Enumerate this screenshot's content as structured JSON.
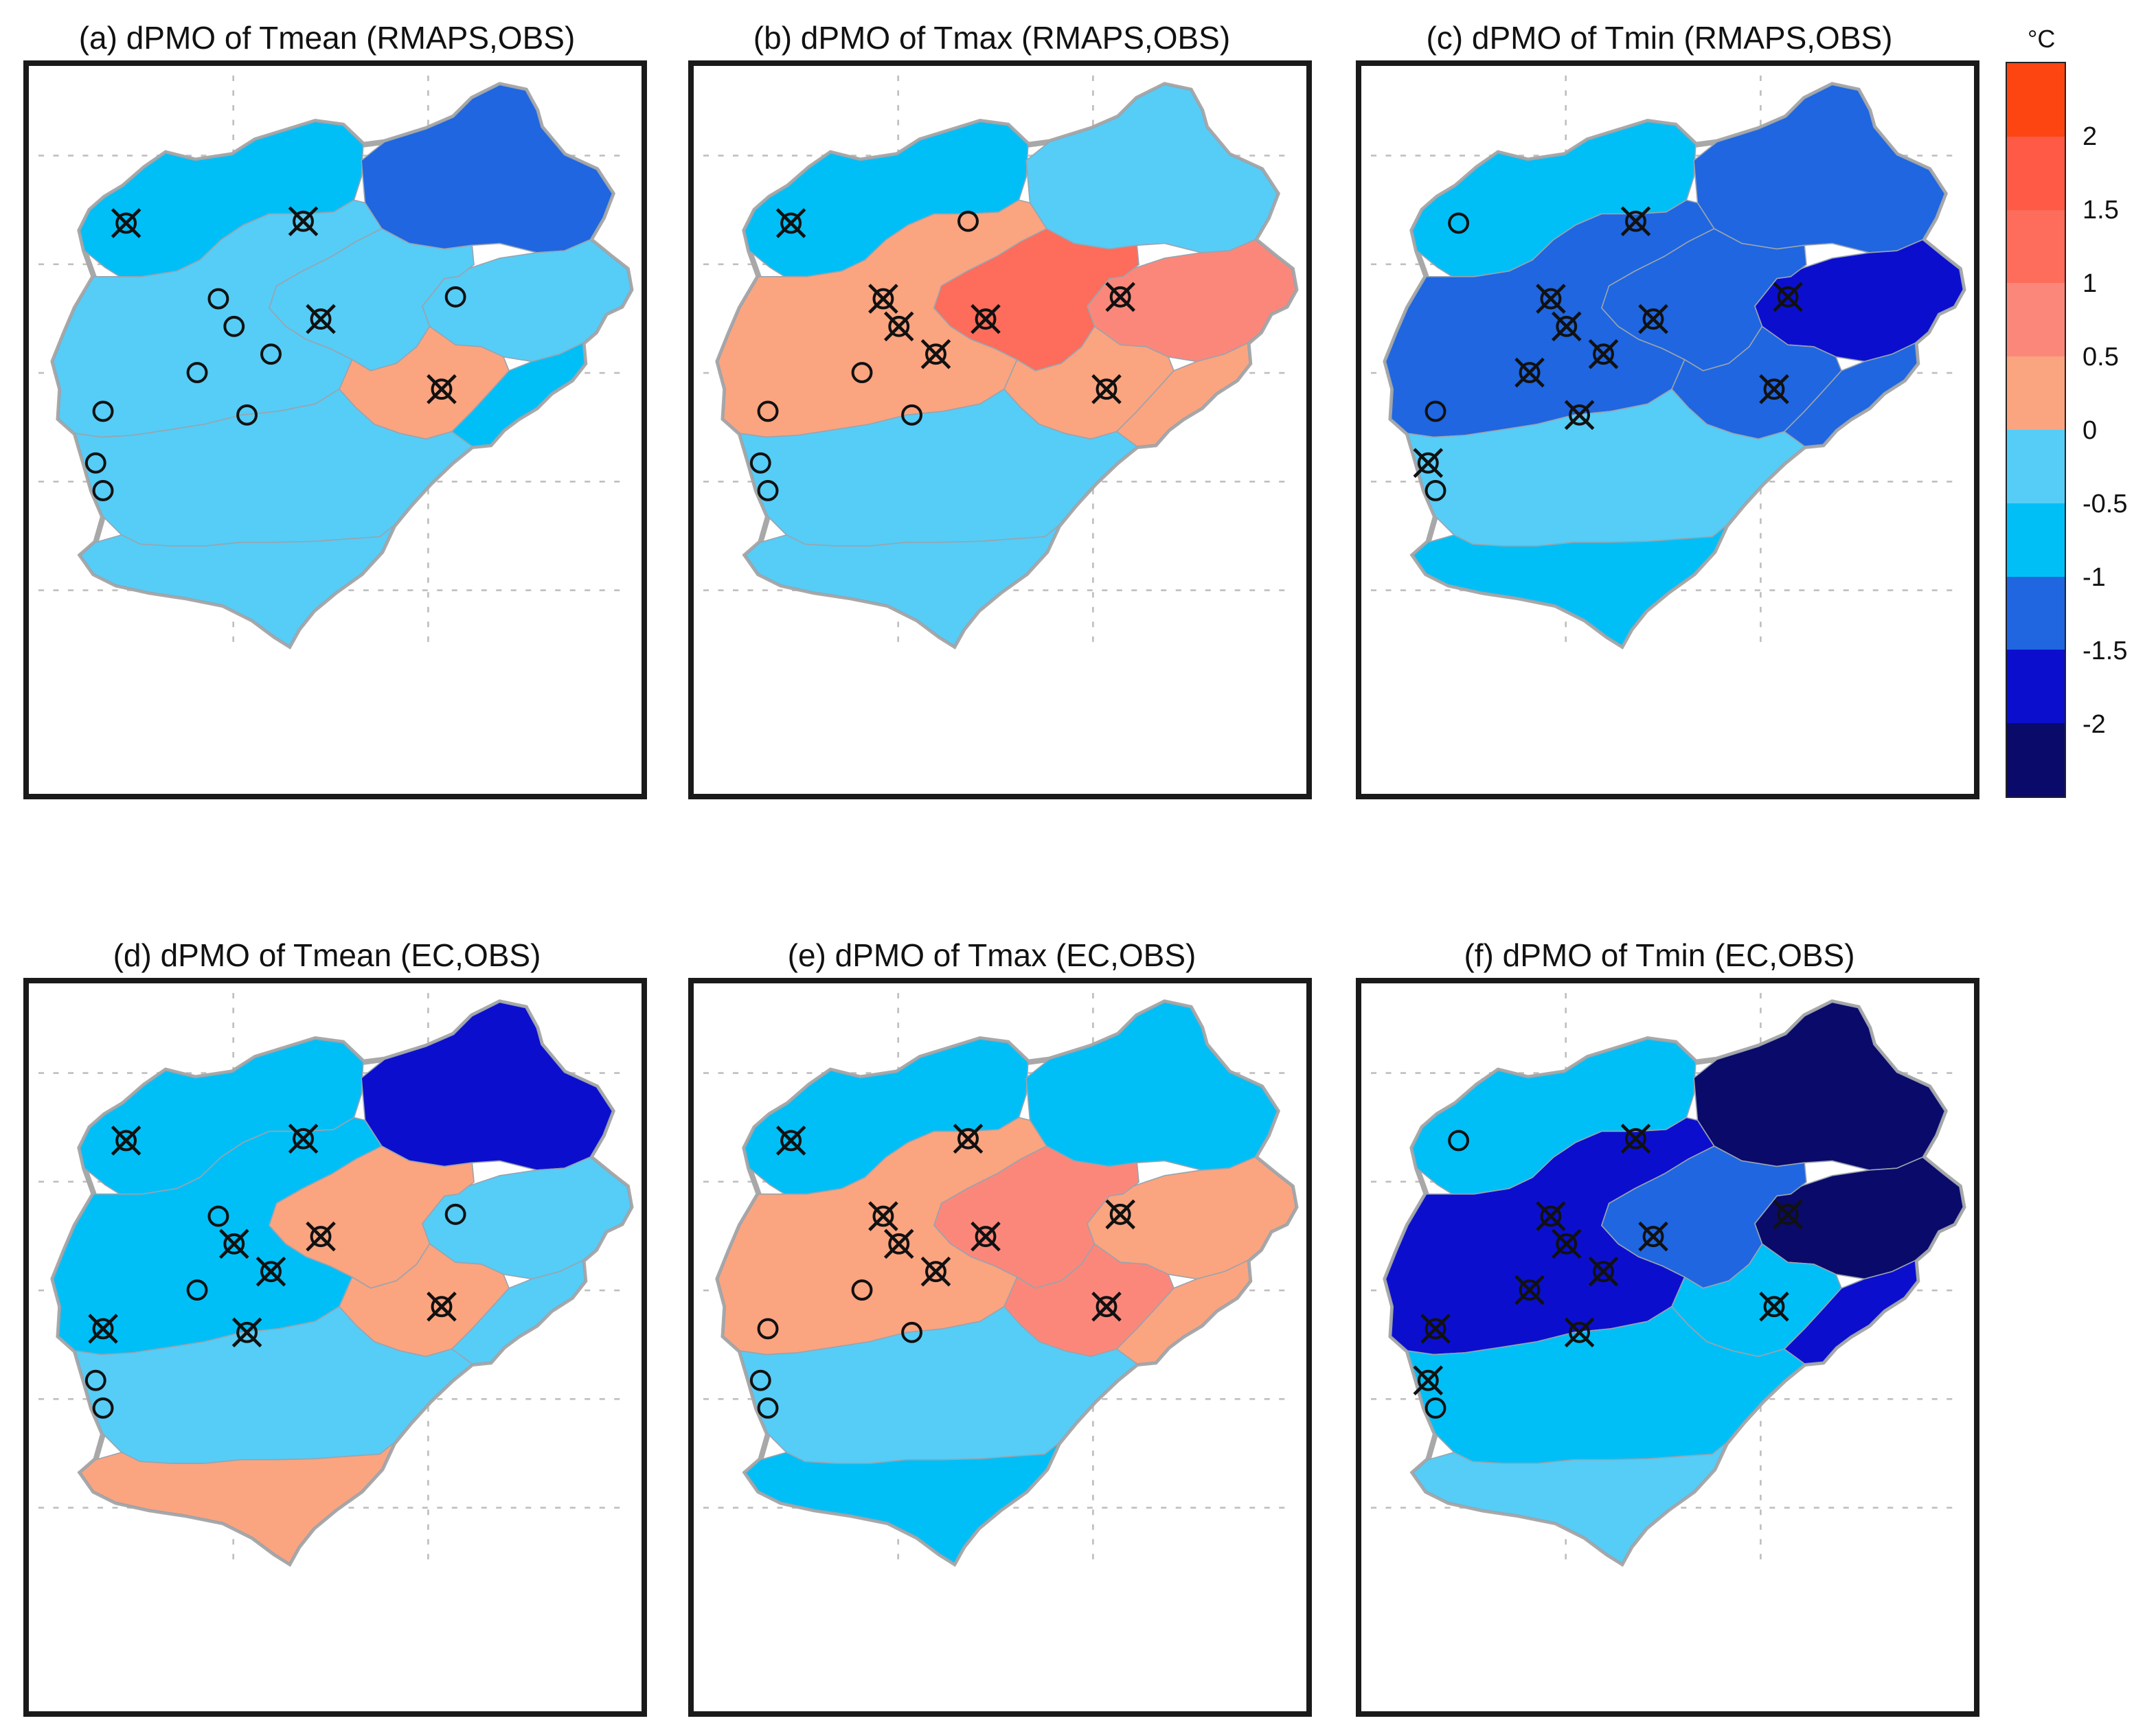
{
  "colors": {
    "-2.5": "#0a0a6b",
    "-2": "#0b0fcd",
    "-1.5": "#1f66e0",
    "-1": "#00bff7",
    "-0.5": "#55cdf7",
    "0": "#fba480",
    "0.5": "#fb877b",
    "1": "#fe6c5b",
    "1.5": "#fe5a45",
    "2": "#fd4511"
  },
  "colorbar": {
    "unit": "°C",
    "bins": [
      -2.5,
      -2,
      -1.5,
      -1,
      -0.5,
      0,
      0.5,
      1,
      1.5,
      2
    ],
    "ticks": [
      "2",
      "1.5",
      "1",
      "0.5",
      "0",
      "-0.5",
      "-1",
      "-1.5",
      "-2"
    ]
  },
  "panels": [
    {
      "id": "a",
      "title": "(a) dPMO of Tmean (RMAPS,OBS)",
      "regions": {
        "NW": -1,
        "NE": -1.5,
        "E": -0.5,
        "C": -0.5,
        "CS": 0,
        "CE": -1,
        "W": -0.5,
        "SW": -0.5,
        "S": -0.5
      },
      "stations": [
        {
          "name": "s1",
          "marker": "cross"
        },
        {
          "name": "s2",
          "marker": "cross"
        },
        {
          "name": "s3",
          "marker": "circle"
        },
        {
          "name": "s4",
          "marker": "circle"
        },
        {
          "name": "s5",
          "marker": "circle"
        },
        {
          "name": "s6",
          "marker": "cross"
        },
        {
          "name": "s7",
          "marker": "circle"
        },
        {
          "name": "s8",
          "marker": "circle"
        },
        {
          "name": "s9",
          "marker": "cross"
        },
        {
          "name": "s10",
          "marker": "circle"
        },
        {
          "name": "s11",
          "marker": "circle"
        },
        {
          "name": "s12",
          "marker": "circle"
        },
        {
          "name": "s13",
          "marker": "circle"
        }
      ]
    },
    {
      "id": "b",
      "title": "(b) dPMO of Tmax (RMAPS,OBS)",
      "regions": {
        "NW": -1,
        "NE": -0.5,
        "E": 0.5,
        "C": 1,
        "CS": 0,
        "CE": 0,
        "W": 0,
        "SW": -0.5,
        "S": -0.5
      },
      "stations": [
        {
          "name": "s1",
          "marker": "cross"
        },
        {
          "name": "s2",
          "marker": "circle"
        },
        {
          "name": "s3",
          "marker": "cross"
        },
        {
          "name": "s4",
          "marker": "cross"
        },
        {
          "name": "s5",
          "marker": "cross"
        },
        {
          "name": "s6",
          "marker": "cross"
        },
        {
          "name": "s7",
          "marker": "cross"
        },
        {
          "name": "s8",
          "marker": "circle"
        },
        {
          "name": "s9",
          "marker": "cross"
        },
        {
          "name": "s10",
          "marker": "circle"
        },
        {
          "name": "s11",
          "marker": "circle"
        },
        {
          "name": "s12",
          "marker": "circle"
        },
        {
          "name": "s13",
          "marker": "circle"
        }
      ]
    },
    {
      "id": "c",
      "title": "(c) dPMO of Tmin (RMAPS,OBS)",
      "regions": {
        "NW": -1,
        "NE": -1.5,
        "E": -2,
        "C": -1.5,
        "CS": -1.5,
        "CE": -1.5,
        "W": -1.5,
        "SW": -0.5,
        "S": -1
      },
      "stations": [
        {
          "name": "s1",
          "marker": "circle"
        },
        {
          "name": "s2",
          "marker": "cross"
        },
        {
          "name": "s3",
          "marker": "cross"
        },
        {
          "name": "s4",
          "marker": "cross"
        },
        {
          "name": "s5",
          "marker": "cross"
        },
        {
          "name": "s6",
          "marker": "cross"
        },
        {
          "name": "s7",
          "marker": "cross"
        },
        {
          "name": "s8",
          "marker": "cross"
        },
        {
          "name": "s9",
          "marker": "cross"
        },
        {
          "name": "s10",
          "marker": "circle"
        },
        {
          "name": "s11",
          "marker": "cross"
        },
        {
          "name": "s12",
          "marker": "cross"
        },
        {
          "name": "s13",
          "marker": "circle"
        }
      ]
    },
    {
      "id": "d",
      "title": "(d) dPMO of Tmean (EC,OBS)",
      "regions": {
        "NW": -1,
        "NE": -2,
        "E": -0.5,
        "C": 0,
        "CS": 0,
        "CE": -0.5,
        "W": -1,
        "SW": -0.5,
        "S": 0
      },
      "stations": [
        {
          "name": "s1",
          "marker": "cross"
        },
        {
          "name": "s2",
          "marker": "cross"
        },
        {
          "name": "s3",
          "marker": "circle"
        },
        {
          "name": "s4",
          "marker": "circle"
        },
        {
          "name": "s5",
          "marker": "cross"
        },
        {
          "name": "s6",
          "marker": "cross"
        },
        {
          "name": "s7",
          "marker": "cross"
        },
        {
          "name": "s8",
          "marker": "circle"
        },
        {
          "name": "s9",
          "marker": "cross"
        },
        {
          "name": "s10",
          "marker": "cross"
        },
        {
          "name": "s11",
          "marker": "cross"
        },
        {
          "name": "s12",
          "marker": "circle"
        },
        {
          "name": "s13",
          "marker": "circle"
        }
      ]
    },
    {
      "id": "e",
      "title": "(e) dPMO of Tmax (EC,OBS)",
      "regions": {
        "NW": -1,
        "NE": -1,
        "E": 0,
        "C": 0.5,
        "CS": 0.5,
        "CE": 0,
        "W": 0,
        "SW": -0.5,
        "S": -1
      },
      "stations": [
        {
          "name": "s1",
          "marker": "cross"
        },
        {
          "name": "s2",
          "marker": "cross"
        },
        {
          "name": "s3",
          "marker": "cross"
        },
        {
          "name": "s4",
          "marker": "cross"
        },
        {
          "name": "s5",
          "marker": "cross"
        },
        {
          "name": "s6",
          "marker": "cross"
        },
        {
          "name": "s7",
          "marker": "cross"
        },
        {
          "name": "s8",
          "marker": "circle"
        },
        {
          "name": "s9",
          "marker": "cross"
        },
        {
          "name": "s10",
          "marker": "circle"
        },
        {
          "name": "s11",
          "marker": "circle"
        },
        {
          "name": "s12",
          "marker": "circle"
        },
        {
          "name": "s13",
          "marker": "circle"
        }
      ]
    },
    {
      "id": "f",
      "title": "(f) dPMO of Tmin (EC,OBS)",
      "regions": {
        "NW": -1,
        "NE": -2.5,
        "E": -2.5,
        "C": -1.5,
        "CS": -1,
        "CE": -2,
        "W": -2,
        "SW": -1,
        "S": -0.5
      },
      "stations": [
        {
          "name": "s1",
          "marker": "circle"
        },
        {
          "name": "s2",
          "marker": "cross"
        },
        {
          "name": "s3",
          "marker": "cross"
        },
        {
          "name": "s4",
          "marker": "cross"
        },
        {
          "name": "s5",
          "marker": "cross"
        },
        {
          "name": "s6",
          "marker": "cross"
        },
        {
          "name": "s7",
          "marker": "cross"
        },
        {
          "name": "s8",
          "marker": "cross"
        },
        {
          "name": "s9",
          "marker": "cross"
        },
        {
          "name": "s10",
          "marker": "cross"
        },
        {
          "name": "s11",
          "marker": "cross"
        },
        {
          "name": "s12",
          "marker": "cross"
        },
        {
          "name": "s13",
          "marker": "circle"
        }
      ]
    }
  ]
}
